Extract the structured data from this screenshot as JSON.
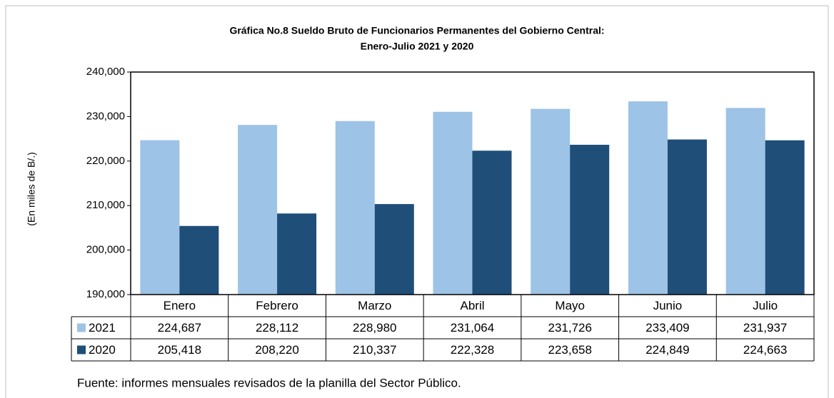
{
  "chart_data": {
    "type": "bar",
    "title": [
      "Gráfica No.8 Sueldo Bruto de Funcionarios Permanentes del Gobierno Central:",
      "Enero-Julio 2021 y 2020"
    ],
    "y_label": "(En miles de B/.)",
    "categories": [
      "Enero",
      "Febrero",
      "Marzo",
      "Abril",
      "Mayo",
      "Junio",
      "Julio"
    ],
    "series": [
      {
        "name": "2021",
        "color": "#9dc3e6",
        "values": [
          224687,
          228112,
          228980,
          231064,
          231726,
          233409,
          231937
        ],
        "value_labels": [
          "224,687",
          "228,112",
          "228,980",
          "231,064",
          "231,726",
          "233,409",
          "231,937"
        ]
      },
      {
        "name": "2020",
        "color": "#1f4e79",
        "values": [
          205418,
          208220,
          210337,
          222328,
          223658,
          224849,
          224663
        ],
        "value_labels": [
          "205,418",
          "208,220",
          "210,337",
          "222,328",
          "223,658",
          "224,849",
          "224,663"
        ]
      }
    ],
    "ylim": [
      190000,
      240000
    ],
    "yticks": [
      {
        "value": 190000,
        "label": "190,000"
      },
      {
        "value": 200000,
        "label": "200,000"
      },
      {
        "value": 210000,
        "label": "210,000"
      },
      {
        "value": 220000,
        "label": "220,000"
      },
      {
        "value": 230000,
        "label": "230,000"
      },
      {
        "value": 240000,
        "label": "240,000"
      }
    ],
    "grid": false,
    "note": "Fuente: informes mensuales revisados de la planilla del Sector Público."
  }
}
